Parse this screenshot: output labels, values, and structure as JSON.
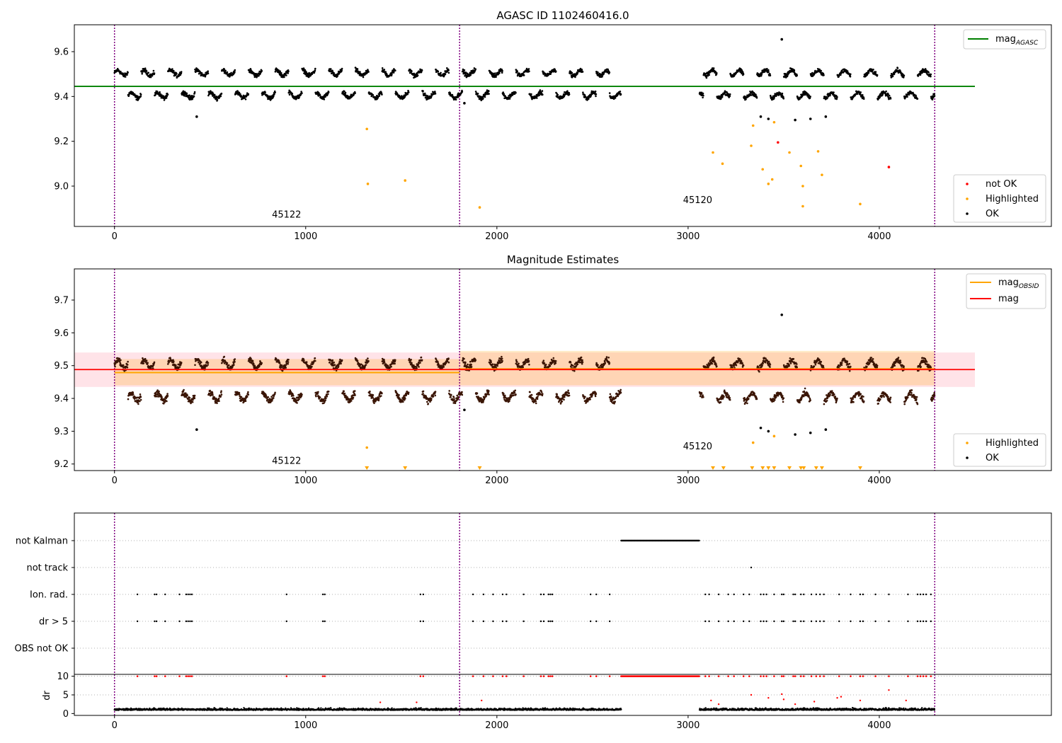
{
  "chart_data": [
    {
      "type": "scatter",
      "title": "AGASC ID 1102460416.0",
      "xlim": [
        -210,
        4900
      ],
      "ylim": [
        8.82,
        9.72
      ],
      "xticks": [
        0,
        1000,
        2000,
        3000,
        4000
      ],
      "yticks": [
        9.0,
        9.2,
        9.4,
        9.6
      ],
      "obs_boundaries": [
        0,
        1805,
        4290
      ],
      "obs_labels": [
        {
          "text": "45122",
          "x": 900,
          "y": 8.86
        },
        {
          "text": "45120",
          "x": 3050,
          "y": 8.925
        }
      ],
      "hline": {
        "name": "mag_AGASC",
        "y": 9.445,
        "x": [
          -210,
          4500
        ],
        "color": "#008000"
      },
      "segments": [
        [
          0,
          2650
        ],
        [
          3060,
          4290
        ]
      ],
      "bands": [
        9.505,
        9.405
      ],
      "series": [
        {
          "name": "not OK",
          "color": "#ff0000",
          "points": [
            [
              3470,
              9.195
            ],
            [
              4050,
              9.085
            ]
          ]
        },
        {
          "name": "Highlighted",
          "color": "#ffa500",
          "points": [
            [
              1320,
              9.255
            ],
            [
              1325,
              9.01
            ],
            [
              1520,
              9.025
            ],
            [
              1910,
              8.905
            ],
            [
              3130,
              9.15
            ],
            [
              3180,
              9.1
            ],
            [
              3330,
              9.18
            ],
            [
              3340,
              9.27
            ],
            [
              3390,
              9.075
            ],
            [
              3420,
              9.01
            ],
            [
              3450,
              9.285
            ],
            [
              3440,
              9.03
            ],
            [
              3530,
              9.15
            ],
            [
              3590,
              9.09
            ],
            [
              3600,
              9.0
            ],
            [
              3600,
              8.91
            ],
            [
              3680,
              9.155
            ],
            [
              3700,
              9.05
            ],
            [
              3900,
              8.92
            ]
          ]
        },
        {
          "name": "OK",
          "color": "#000000",
          "points": [
            [
              430,
              9.31
            ],
            [
              1830,
              9.37
            ],
            [
              3380,
              9.31
            ],
            [
              3420,
              9.3
            ],
            [
              3490,
              9.655
            ],
            [
              3560,
              9.295
            ],
            [
              3640,
              9.3
            ],
            [
              3720,
              9.31
            ]
          ]
        }
      ],
      "legend_upper": {
        "label_main": "mag",
        "label_sub": "AGASC"
      },
      "legend_lower": [
        "not OK",
        "Highlighted",
        "OK"
      ]
    },
    {
      "type": "scatter",
      "title": "Magnitude Estimates",
      "xlim": [
        -210,
        4900
      ],
      "ylim": [
        9.18,
        9.795
      ],
      "xticks": [
        0,
        1000,
        2000,
        3000,
        4000
      ],
      "yticks": [
        9.2,
        9.3,
        9.4,
        9.5,
        9.6,
        9.7
      ],
      "obs_boundaries": [
        0,
        1805,
        4290
      ],
      "obs_labels": [
        {
          "text": "45122",
          "x": 900,
          "y": 9.2
        },
        {
          "text": "45120",
          "x": 3050,
          "y": 9.245
        }
      ],
      "mag_line": {
        "name": "mag",
        "y": 9.488,
        "band": [
          9.435,
          9.54
        ],
        "x": [
          -210,
          4500
        ],
        "color": "#ff0000",
        "band_color": "#ffc0cb"
      },
      "obsid_lines": [
        {
          "x": [
            0,
            1805
          ],
          "y": 9.479,
          "band": [
            9.44,
            9.52
          ]
        },
        {
          "x": [
            1805,
            4290
          ],
          "y": 9.49,
          "band": [
            9.44,
            9.545
          ]
        }
      ],
      "segments": [
        [
          0,
          2650
        ],
        [
          3060,
          4290
        ]
      ],
      "bands": [
        9.505,
        9.405
      ],
      "series": [
        {
          "name": "Highlighted",
          "color": "#ffa500",
          "points": [
            [
              1320,
              9.25
            ],
            [
              3340,
              9.265
            ],
            [
              3450,
              9.285
            ]
          ],
          "lower_limits": [
            1320,
            1520,
            1910,
            3130,
            3185,
            3335,
            3390,
            3420,
            3450,
            3530,
            3590,
            3605,
            3670,
            3700,
            3900
          ]
        },
        {
          "name": "OK",
          "color": "#000000",
          "points": [
            [
              430,
              9.305
            ],
            [
              1830,
              9.365
            ],
            [
              3380,
              9.31
            ],
            [
              3420,
              9.3
            ],
            [
              3490,
              9.655
            ],
            [
              3560,
              9.29
            ],
            [
              3640,
              9.295
            ],
            [
              3720,
              9.305
            ]
          ]
        }
      ],
      "legend_upper": [
        {
          "label_main": "mag",
          "label_sub": "OBSID",
          "color": "#ffa500"
        },
        {
          "label_main": "mag",
          "label_sub": "",
          "color": "#ff0000"
        }
      ],
      "legend_lower": [
        "Highlighted",
        "OK"
      ]
    },
    {
      "type": "scatter",
      "title": "",
      "xlim": [
        -210,
        4900
      ],
      "xticks": [
        0,
        1000,
        2000,
        3000,
        4000
      ],
      "obs_boundaries": [
        0,
        1805,
        4290
      ],
      "flags": [
        {
          "label": "not Kalman",
          "ranges": [
            [
              2650,
              3060
            ]
          ],
          "points": []
        },
        {
          "label": "not track",
          "ranges": [],
          "points": [
            3330
          ]
        },
        {
          "label": "Ion. rad.",
          "ranges": [],
          "points": [
            120,
            210,
            220,
            265,
            340,
            375,
            385,
            395,
            405,
            900,
            1090,
            1100,
            1600,
            1615,
            1875,
            1930,
            1980,
            2030,
            2050,
            2140,
            2230,
            2245,
            2270,
            2280,
            2290,
            2490,
            2520,
            2590,
            3090,
            3110,
            3160,
            3210,
            3240,
            3290,
            3320,
            3380,
            3395,
            3410,
            3450,
            3490,
            3500,
            3550,
            3560,
            3590,
            3605,
            3645,
            3670,
            3690,
            3710,
            3790,
            3850,
            3900,
            3915,
            3980,
            4050,
            4150,
            4200,
            4215,
            4230,
            4245,
            4270
          ]
        },
        {
          "label": "dr > 5",
          "ranges": [],
          "points": [
            120,
            210,
            220,
            265,
            340,
            375,
            385,
            395,
            405,
            900,
            1090,
            1100,
            1600,
            1615,
            1875,
            1930,
            1980,
            2030,
            2050,
            2140,
            2230,
            2245,
            2270,
            2280,
            2290,
            2490,
            2520,
            2590,
            3090,
            3110,
            3160,
            3210,
            3240,
            3290,
            3320,
            3380,
            3395,
            3410,
            3450,
            3490,
            3500,
            3550,
            3560,
            3590,
            3605,
            3645,
            3670,
            3690,
            3710,
            3790,
            3850,
            3900,
            3915,
            3980,
            4050,
            4150,
            4200,
            4215,
            4230,
            4245,
            4270
          ]
        },
        {
          "label": "OBS not OK",
          "ranges": [],
          "points": []
        }
      ]
    },
    {
      "type": "scatter",
      "title": "",
      "ylabel": "dr",
      "xlim": [
        -210,
        4900
      ],
      "ylim": [
        -0.5,
        10.5
      ],
      "xticks": [
        0,
        1000,
        2000,
        3000,
        4000
      ],
      "yticks": [
        0,
        5,
        10
      ],
      "obs_boundaries": [
        0,
        1805,
        4290
      ],
      "segments": [
        [
          0,
          2650
        ],
        [
          3060,
          4290
        ]
      ],
      "saturated": {
        "value": 10,
        "color": "#ff0000",
        "ranges": [
          [
            2650,
            3060
          ]
        ],
        "points": [
          120,
          210,
          220,
          265,
          340,
          375,
          385,
          395,
          405,
          900,
          1090,
          1100,
          1600,
          1615,
          1875,
          1930,
          1980,
          2030,
          2050,
          2140,
          2230,
          2245,
          2270,
          2280,
          2290,
          2490,
          2520,
          2590,
          3090,
          3110,
          3160,
          3210,
          3240,
          3290,
          3320,
          3380,
          3395,
          3410,
          3450,
          3490,
          3500,
          3550,
          3560,
          3590,
          3605,
          3645,
          3670,
          3690,
          3710,
          3790,
          3850,
          3900,
          3915,
          3980,
          4050,
          4150,
          4200,
          4215,
          4230,
          4245,
          4270
        ]
      },
      "outliers": [
        [
          1390,
          3.0
        ],
        [
          1920,
          3.5
        ],
        [
          1580,
          3.0
        ],
        [
          3120,
          3.5
        ],
        [
          3160,
          2.5
        ],
        [
          3330,
          5.0
        ],
        [
          3420,
          4.2
        ],
        [
          3490,
          5.2
        ],
        [
          3500,
          3.8
        ],
        [
          3560,
          2.5
        ],
        [
          3660,
          3.2
        ],
        [
          3780,
          4.2
        ],
        [
          3800,
          4.5
        ],
        [
          3900,
          3.5
        ],
        [
          4050,
          6.3
        ],
        [
          4140,
          3.5
        ]
      ]
    }
  ]
}
